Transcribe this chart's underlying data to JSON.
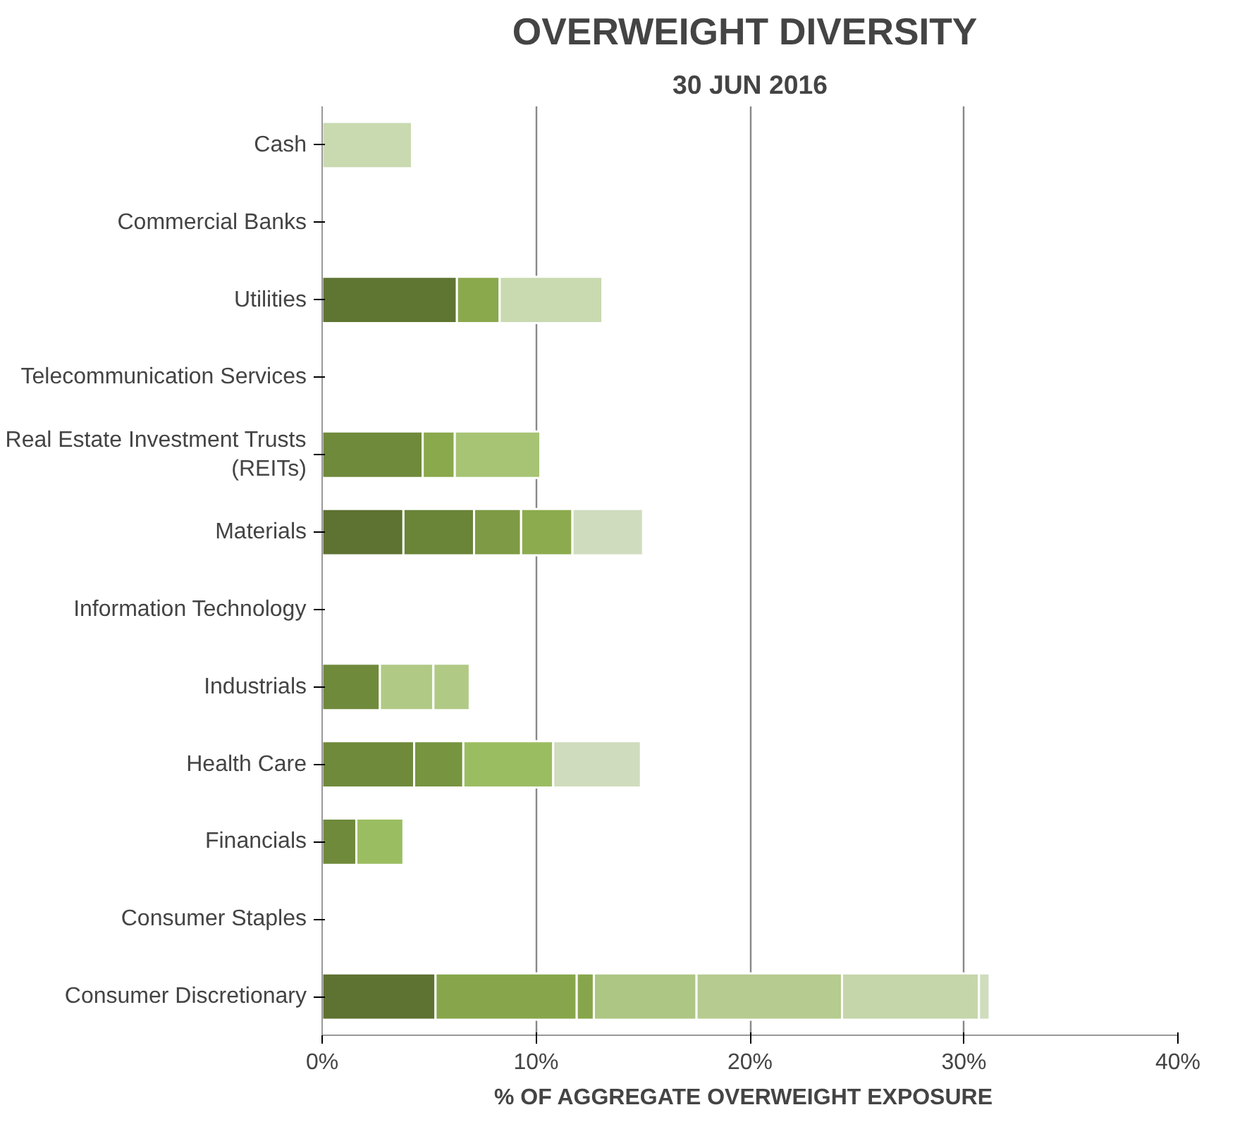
{
  "chart_data": {
    "type": "bar",
    "orientation": "horizontal",
    "stacked": true,
    "title": "OVERWEIGHT  DIVERSITY",
    "subtitle": "30 JUN 2016",
    "xlabel": "% OF AGGREGATE  OVERWEIGHT  EXPOSURE",
    "categories": [
      "Cash",
      "Commercial Banks",
      "Utilities",
      "Telecommunication Services",
      "Real Estate Investment Trusts\n(REITs)",
      "Materials",
      "Information Technology",
      "Industrials",
      "Health Care",
      "Financials",
      "Consumer Staples",
      "Consumer Discretionary"
    ],
    "series": [
      {
        "values": [
          4.2,
          null,
          6.3,
          null,
          4.7,
          3.8,
          null,
          2.7,
          4.3,
          1.6,
          null,
          5.3
        ],
        "colors": [
          "#c9dab0",
          null,
          "#5f7532",
          null,
          "#6f8a3b",
          "#5e7232",
          null,
          "#6f8a3b",
          "#6f8a3b",
          "#6f8a3b",
          null,
          "#5e7232"
        ]
      },
      {
        "values": [
          null,
          null,
          2.0,
          null,
          1.5,
          3.3,
          null,
          2.5,
          2.3,
          2.2,
          null,
          6.6
        ],
        "colors": [
          null,
          null,
          "#8aa84c",
          null,
          "#8aa84c",
          "#6a8438",
          null,
          "#b0ca85",
          "#779440",
          "#9bbd61",
          null,
          "#87a64b"
        ]
      },
      {
        "values": [
          null,
          null,
          4.8,
          null,
          4.0,
          2.2,
          null,
          1.7,
          4.2,
          null,
          null,
          0.8
        ],
        "colors": [
          null,
          null,
          "#c9dab0",
          null,
          "#a6c474",
          "#7e9a44",
          null,
          "#b0ca85",
          "#9bbd61",
          null,
          null,
          "#87a64b"
        ]
      },
      {
        "values": [
          null,
          null,
          null,
          null,
          null,
          2.4,
          null,
          0.1,
          4.1,
          null,
          null,
          4.8
        ],
        "colors": [
          null,
          null,
          null,
          null,
          null,
          "#8cab4e",
          null,
          "#c9dab0",
          "#cfdcbe",
          null,
          null,
          "#adc683"
        ]
      },
      {
        "values": [
          null,
          null,
          null,
          null,
          null,
          3.3,
          null,
          null,
          null,
          null,
          null,
          6.8
        ],
        "colors": [
          null,
          null,
          null,
          null,
          null,
          "#cfdcbe",
          null,
          null,
          null,
          null,
          null,
          "#b5cb8f"
        ]
      },
      {
        "values": [
          null,
          null,
          null,
          null,
          null,
          null,
          null,
          null,
          null,
          null,
          null,
          6.4
        ],
        "colors": [
          null,
          null,
          null,
          null,
          null,
          null,
          null,
          null,
          null,
          null,
          null,
          "#c5d6aa"
        ]
      },
      {
        "values": [
          null,
          null,
          null,
          null,
          null,
          null,
          null,
          null,
          null,
          null,
          null,
          0.5
        ],
        "colors": [
          null,
          null,
          null,
          null,
          null,
          null,
          null,
          null,
          null,
          null,
          null,
          "#d0ddbd"
        ]
      }
    ],
    "xlim": [
      0,
      40
    ],
    "xticks": [
      {
        "value": 0,
        "label": "0%"
      },
      {
        "value": 10,
        "label": "10%"
      },
      {
        "value": 20,
        "label": "20%"
      },
      {
        "value": 30,
        "label": "30%"
      },
      {
        "value": 40,
        "label": "40%"
      }
    ],
    "grid": "x"
  }
}
